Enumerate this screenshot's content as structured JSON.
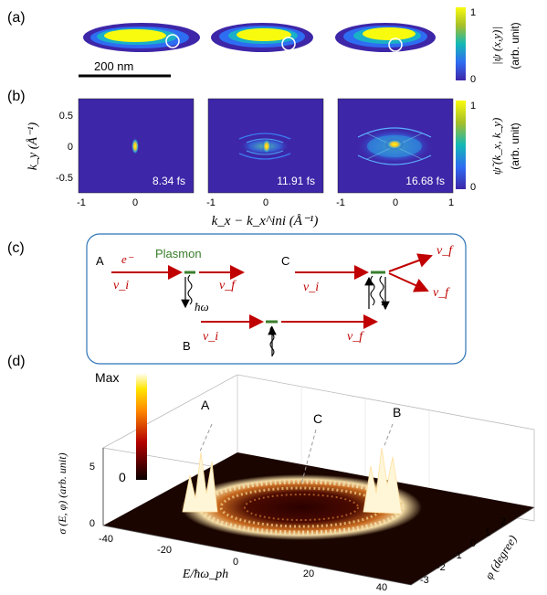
{
  "panels": {
    "a": {
      "label": "(a)",
      "scalebar": "200 nm",
      "colorbar": {
        "max": "1",
        "min": "0",
        "title": "|ψ (x,y)|",
        "unit": "(arb. unit)"
      }
    },
    "b": {
      "label": "(b)",
      "ylabel": "k_y (Å⁻¹)",
      "xlabel": "k_x − k_x^ini (Å⁻¹)",
      "yticks": [
        "0.5",
        "0",
        "-0.5"
      ],
      "xticks": [
        "-1",
        "0",
        "1"
      ],
      "times": [
        "8.34 fs",
        "11.91 fs",
        "16.68 fs"
      ],
      "colorbar": {
        "max": "1",
        "min": "0",
        "title": "ψ̃ (k_x, k_y)",
        "unit": "(arb. unit)"
      }
    },
    "c": {
      "label": "(c)",
      "A": {
        "tag": "A",
        "electron": "e⁻",
        "plasmon": "Plasmon",
        "vin": "v_i",
        "vout": "v_f",
        "photon": "ħω"
      },
      "B": {
        "tag": "B",
        "vin": "v_i",
        "vout": "v_f"
      },
      "C": {
        "tag": "C",
        "vin": "v_i",
        "vout1": "v_f",
        "vout2": "v_f"
      }
    },
    "d": {
      "label": "(d)",
      "colorbar": {
        "max": "Max",
        "min": "0"
      },
      "peaks": [
        "A",
        "C",
        "B"
      ],
      "zlabel": "σ (E, φ) (arb. unit)",
      "zticks": [
        "5",
        "0"
      ],
      "xlabel": "E/ħω_ph",
      "xticks": [
        "-40",
        "-20",
        "0",
        "20",
        "40"
      ],
      "ylabel": "φ (degree)",
      "yticks": [
        "2",
        "1",
        "0",
        "-1",
        "-2",
        "-3"
      ]
    }
  },
  "colors": {
    "accent_red": "#c00000",
    "plasmon_green": "#3a7d2c",
    "parula_dark": "#3e26a8",
    "parula_yellow": "#f9fb0e",
    "hot_black": "#0a0000",
    "hot_white": "#ffffff"
  }
}
